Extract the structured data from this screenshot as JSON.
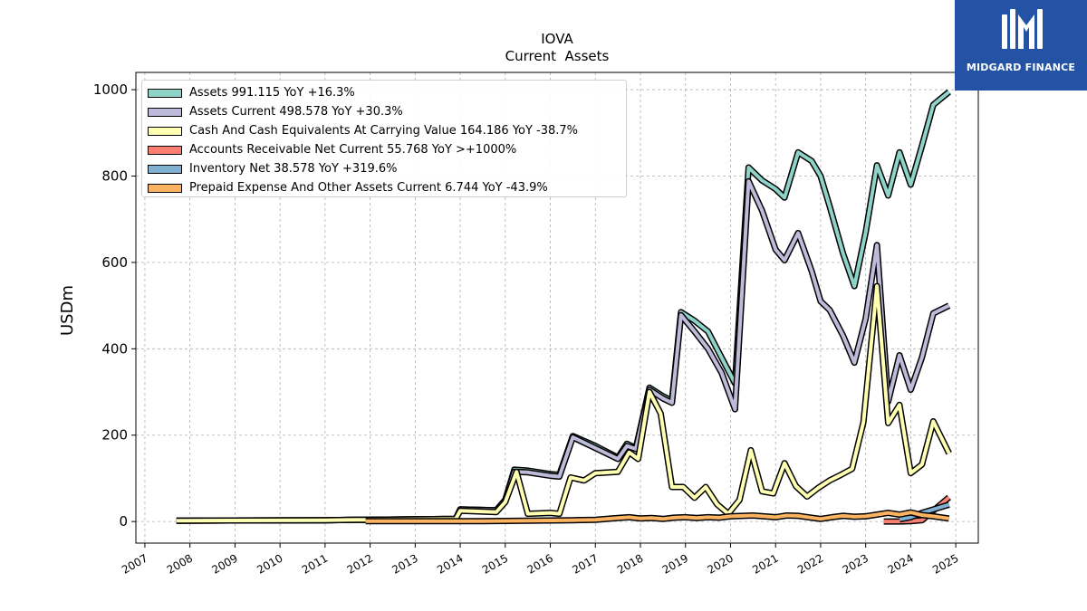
{
  "brand": {
    "name": "MIDGARD FINANCE"
  },
  "chart_data": {
    "type": "line",
    "title": "IOVA",
    "subtitle": "Current  Assets",
    "ylabel": "USDm",
    "xlabel": "",
    "xlim": [
      2006.8,
      2025.5
    ],
    "ylim": [
      -50,
      1040
    ],
    "yticks": [
      0,
      200,
      400,
      600,
      800,
      1000
    ],
    "xticks": [
      2007,
      2008,
      2009,
      2010,
      2011,
      2012,
      2013,
      2014,
      2015,
      2016,
      2017,
      2018,
      2019,
      2020,
      2021,
      2022,
      2023,
      2024,
      2025
    ],
    "grid": true,
    "legend_position": "top-left",
    "series": [
      {
        "name": "Assets",
        "legend": "Assets  991.115 YoY +16.3%",
        "color": "#8dd3c7",
        "points": [
          [
            2007.7,
            2
          ],
          [
            2011.0,
            3
          ],
          [
            2011.7,
            4
          ],
          [
            2011.9,
            4
          ],
          [
            2013.9,
            6
          ],
          [
            2014.0,
            28
          ],
          [
            2014.8,
            26
          ],
          [
            2015.0,
            50
          ],
          [
            2015.2,
            120
          ],
          [
            2015.5,
            118
          ],
          [
            2016.0,
            110
          ],
          [
            2016.2,
            108
          ],
          [
            2016.5,
            198
          ],
          [
            2017.0,
            175
          ],
          [
            2017.5,
            148
          ],
          [
            2017.7,
            180
          ],
          [
            2017.9,
            170
          ],
          [
            2018.2,
            310
          ],
          [
            2018.5,
            290
          ],
          [
            2018.7,
            280
          ],
          [
            2018.9,
            485
          ],
          [
            2019.2,
            465
          ],
          [
            2019.5,
            440
          ],
          [
            2019.8,
            380
          ],
          [
            2020.1,
            320
          ],
          [
            2020.4,
            820
          ],
          [
            2020.7,
            790
          ],
          [
            2021.0,
            770
          ],
          [
            2021.2,
            750
          ],
          [
            2021.5,
            855
          ],
          [
            2021.8,
            835
          ],
          [
            2022.0,
            800
          ],
          [
            2022.2,
            730
          ],
          [
            2022.5,
            620
          ],
          [
            2022.75,
            545
          ],
          [
            2023.0,
            670
          ],
          [
            2023.25,
            825
          ],
          [
            2023.5,
            755
          ],
          [
            2023.75,
            855
          ],
          [
            2024.0,
            780
          ],
          [
            2024.25,
            870
          ],
          [
            2024.5,
            965
          ],
          [
            2024.85,
            995
          ]
        ]
      },
      {
        "name": "Assets Current",
        "legend": "Assets Current  498.578 YoY +30.3%",
        "color": "#bebada",
        "points": [
          [
            2007.7,
            2
          ],
          [
            2011.0,
            3
          ],
          [
            2011.7,
            4
          ],
          [
            2011.9,
            4
          ],
          [
            2013.9,
            6
          ],
          [
            2014.0,
            28
          ],
          [
            2014.8,
            26
          ],
          [
            2015.0,
            50
          ],
          [
            2015.2,
            115
          ],
          [
            2015.5,
            114
          ],
          [
            2016.0,
            106
          ],
          [
            2016.2,
            104
          ],
          [
            2016.5,
            195
          ],
          [
            2017.0,
            170
          ],
          [
            2017.5,
            145
          ],
          [
            2017.7,
            175
          ],
          [
            2017.9,
            168
          ],
          [
            2018.2,
            305
          ],
          [
            2018.5,
            285
          ],
          [
            2018.7,
            275
          ],
          [
            2018.9,
            478
          ],
          [
            2019.2,
            440
          ],
          [
            2019.5,
            400
          ],
          [
            2019.8,
            345
          ],
          [
            2020.1,
            260
          ],
          [
            2020.4,
            788
          ],
          [
            2020.7,
            720
          ],
          [
            2021.0,
            630
          ],
          [
            2021.2,
            605
          ],
          [
            2021.5,
            668
          ],
          [
            2021.8,
            580
          ],
          [
            2022.0,
            510
          ],
          [
            2022.2,
            490
          ],
          [
            2022.5,
            430
          ],
          [
            2022.75,
            368
          ],
          [
            2023.0,
            470
          ],
          [
            2023.25,
            640
          ],
          [
            2023.5,
            278
          ],
          [
            2023.75,
            385
          ],
          [
            2024.0,
            305
          ],
          [
            2024.25,
            380
          ],
          [
            2024.5,
            482
          ],
          [
            2024.85,
            500
          ]
        ]
      },
      {
        "name": "Cash And Cash Equivalents At Carrying Value",
        "legend": "Cash And Cash Equivalents At Carrying Value  164.186 YoY -38.7%",
        "color": "#ffffb3",
        "points": [
          [
            2007.7,
            2
          ],
          [
            2011.0,
            3
          ],
          [
            2011.7,
            4
          ],
          [
            2011.9,
            4
          ],
          [
            2013.9,
            6
          ],
          [
            2014.0,
            25
          ],
          [
            2014.8,
            22
          ],
          [
            2015.0,
            45
          ],
          [
            2015.25,
            115
          ],
          [
            2015.5,
            18
          ],
          [
            2016.0,
            20
          ],
          [
            2016.2,
            18
          ],
          [
            2016.45,
            102
          ],
          [
            2016.75,
            95
          ],
          [
            2017.0,
            112
          ],
          [
            2017.5,
            115
          ],
          [
            2017.75,
            160
          ],
          [
            2017.95,
            145
          ],
          [
            2018.2,
            300
          ],
          [
            2018.45,
            250
          ],
          [
            2018.7,
            80
          ],
          [
            2018.95,
            80
          ],
          [
            2019.2,
            55
          ],
          [
            2019.45,
            80
          ],
          [
            2019.7,
            40
          ],
          [
            2019.95,
            18
          ],
          [
            2020.2,
            50
          ],
          [
            2020.45,
            165
          ],
          [
            2020.7,
            70
          ],
          [
            2020.95,
            65
          ],
          [
            2021.2,
            135
          ],
          [
            2021.45,
            82
          ],
          [
            2021.7,
            58
          ],
          [
            2021.95,
            78
          ],
          [
            2022.2,
            95
          ],
          [
            2022.45,
            108
          ],
          [
            2022.7,
            122
          ],
          [
            2022.95,
            230
          ],
          [
            2023.25,
            545
          ],
          [
            2023.5,
            228
          ],
          [
            2023.75,
            270
          ],
          [
            2024.0,
            112
          ],
          [
            2024.25,
            132
          ],
          [
            2024.5,
            232
          ],
          [
            2024.85,
            158
          ]
        ]
      },
      {
        "name": "Accounts Receivable Net Current",
        "legend": "Accounts Receivable Net Current  55.768 YoY >+1000%",
        "color": "#fb8072",
        "points": [
          [
            2023.4,
            0
          ],
          [
            2023.75,
            0
          ],
          [
            2024.0,
            1
          ],
          [
            2024.25,
            3
          ],
          [
            2024.5,
            25
          ],
          [
            2024.85,
            56
          ]
        ]
      },
      {
        "name": "Inventory Net",
        "legend": "Inventory Net  38.578 YoY +319.6%",
        "color": "#80b1d3",
        "points": [
          [
            2023.75,
            5
          ],
          [
            2024.0,
            10
          ],
          [
            2024.25,
            20
          ],
          [
            2024.5,
            28
          ],
          [
            2024.85,
            39
          ]
        ]
      },
      {
        "name": "Prepaid Expense And Other Assets Current",
        "legend": "Prepaid Expense And Other Assets Current  6.744 YoY -43.9%",
        "color": "#fdb462",
        "points": [
          [
            2011.9,
            1
          ],
          [
            2013.9,
            1
          ],
          [
            2014.5,
            1
          ],
          [
            2015.5,
            2
          ],
          [
            2016.5,
            3
          ],
          [
            2017.0,
            4
          ],
          [
            2017.5,
            8
          ],
          [
            2017.75,
            10
          ],
          [
            2018.0,
            7
          ],
          [
            2018.25,
            8
          ],
          [
            2018.5,
            6
          ],
          [
            2018.75,
            9
          ],
          [
            2019.0,
            10
          ],
          [
            2019.25,
            8
          ],
          [
            2019.5,
            10
          ],
          [
            2019.75,
            9
          ],
          [
            2020.0,
            12
          ],
          [
            2020.5,
            14
          ],
          [
            2021.0,
            10
          ],
          [
            2021.25,
            14
          ],
          [
            2021.5,
            13
          ],
          [
            2022.0,
            6
          ],
          [
            2022.25,
            10
          ],
          [
            2022.5,
            13
          ],
          [
            2022.75,
            11
          ],
          [
            2023.0,
            12
          ],
          [
            2023.25,
            16
          ],
          [
            2023.5,
            20
          ],
          [
            2023.75,
            16
          ],
          [
            2024.0,
            21
          ],
          [
            2024.25,
            15
          ],
          [
            2024.5,
            12
          ],
          [
            2024.85,
            7
          ]
        ]
      }
    ]
  }
}
